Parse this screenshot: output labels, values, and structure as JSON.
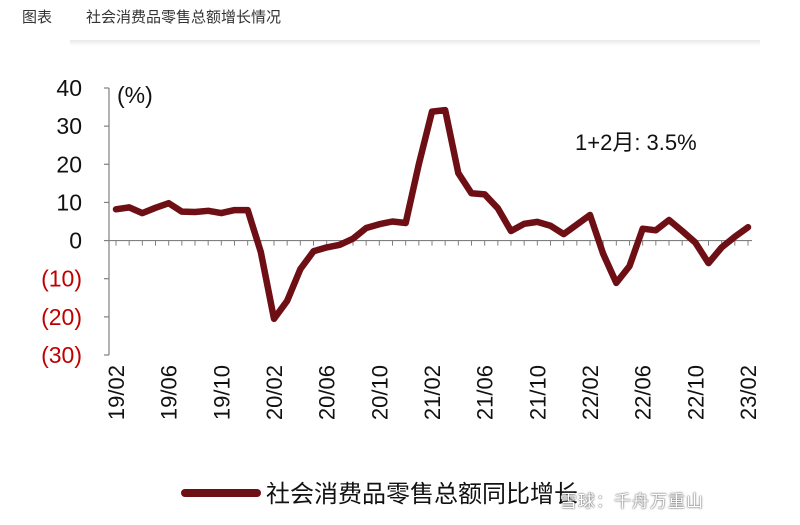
{
  "header": {
    "figure_label": "图表",
    "title": "社会消费品零售总额增长情况"
  },
  "watermark": "雪球：千舟万重山",
  "colors": {
    "line": "#6e0f16",
    "negative_tick": "#c00000",
    "text": "#111111",
    "axis": "#808080"
  },
  "chart_data": {
    "type": "line",
    "ylabel": "(%)",
    "ylim": [
      -30,
      40
    ],
    "yticks": [
      40,
      30,
      20,
      10,
      0,
      -10,
      -20,
      -30
    ],
    "ytick_labels": [
      "40",
      "30",
      "20",
      "10",
      "0",
      "(10)",
      "(20)",
      "(30)"
    ],
    "x_tick_labels": [
      "19/02",
      "19/06",
      "19/10",
      "20/02",
      "20/06",
      "20/10",
      "21/02",
      "21/06",
      "21/10",
      "22/02",
      "22/06",
      "22/10",
      "23/02"
    ],
    "annotation": "1+2月: 3.5%",
    "series": [
      {
        "name": "社会消费品零售总额同比增长",
        "x": [
          "19/02",
          "19/03",
          "19/04",
          "19/05",
          "19/06",
          "19/07",
          "19/08",
          "19/09",
          "19/10",
          "19/11",
          "19/12",
          "20/01",
          "20/02",
          "20/03",
          "20/04",
          "20/05",
          "20/06",
          "20/07",
          "20/08",
          "20/09",
          "20/10",
          "20/11",
          "20/12",
          "21/01",
          "21/02",
          "21/03",
          "21/04",
          "21/05",
          "21/06",
          "21/07",
          "21/08",
          "21/09",
          "21/10",
          "21/11",
          "21/12",
          "22/01",
          "22/02",
          "22/03",
          "22/04",
          "22/05",
          "22/06",
          "22/07",
          "22/08",
          "22/09",
          "22/10",
          "22/11",
          "22/12",
          "23/01",
          "23/02"
        ],
        "values": [
          8.2,
          8.7,
          7.2,
          8.6,
          9.8,
          7.6,
          7.5,
          7.8,
          7.2,
          8.0,
          8.0,
          -3.0,
          -20.5,
          -15.8,
          -7.5,
          -2.8,
          -1.8,
          -1.1,
          0.5,
          3.3,
          4.3,
          5.0,
          4.6,
          20.0,
          33.8,
          34.2,
          17.7,
          12.4,
          12.1,
          8.5,
          2.5,
          4.4,
          4.9,
          3.9,
          1.7,
          4.2,
          6.7,
          -3.5,
          -11.1,
          -6.7,
          3.1,
          2.7,
          5.4,
          2.5,
          -0.5,
          -5.9,
          -1.8,
          1.0,
          3.5
        ]
      }
    ]
  }
}
